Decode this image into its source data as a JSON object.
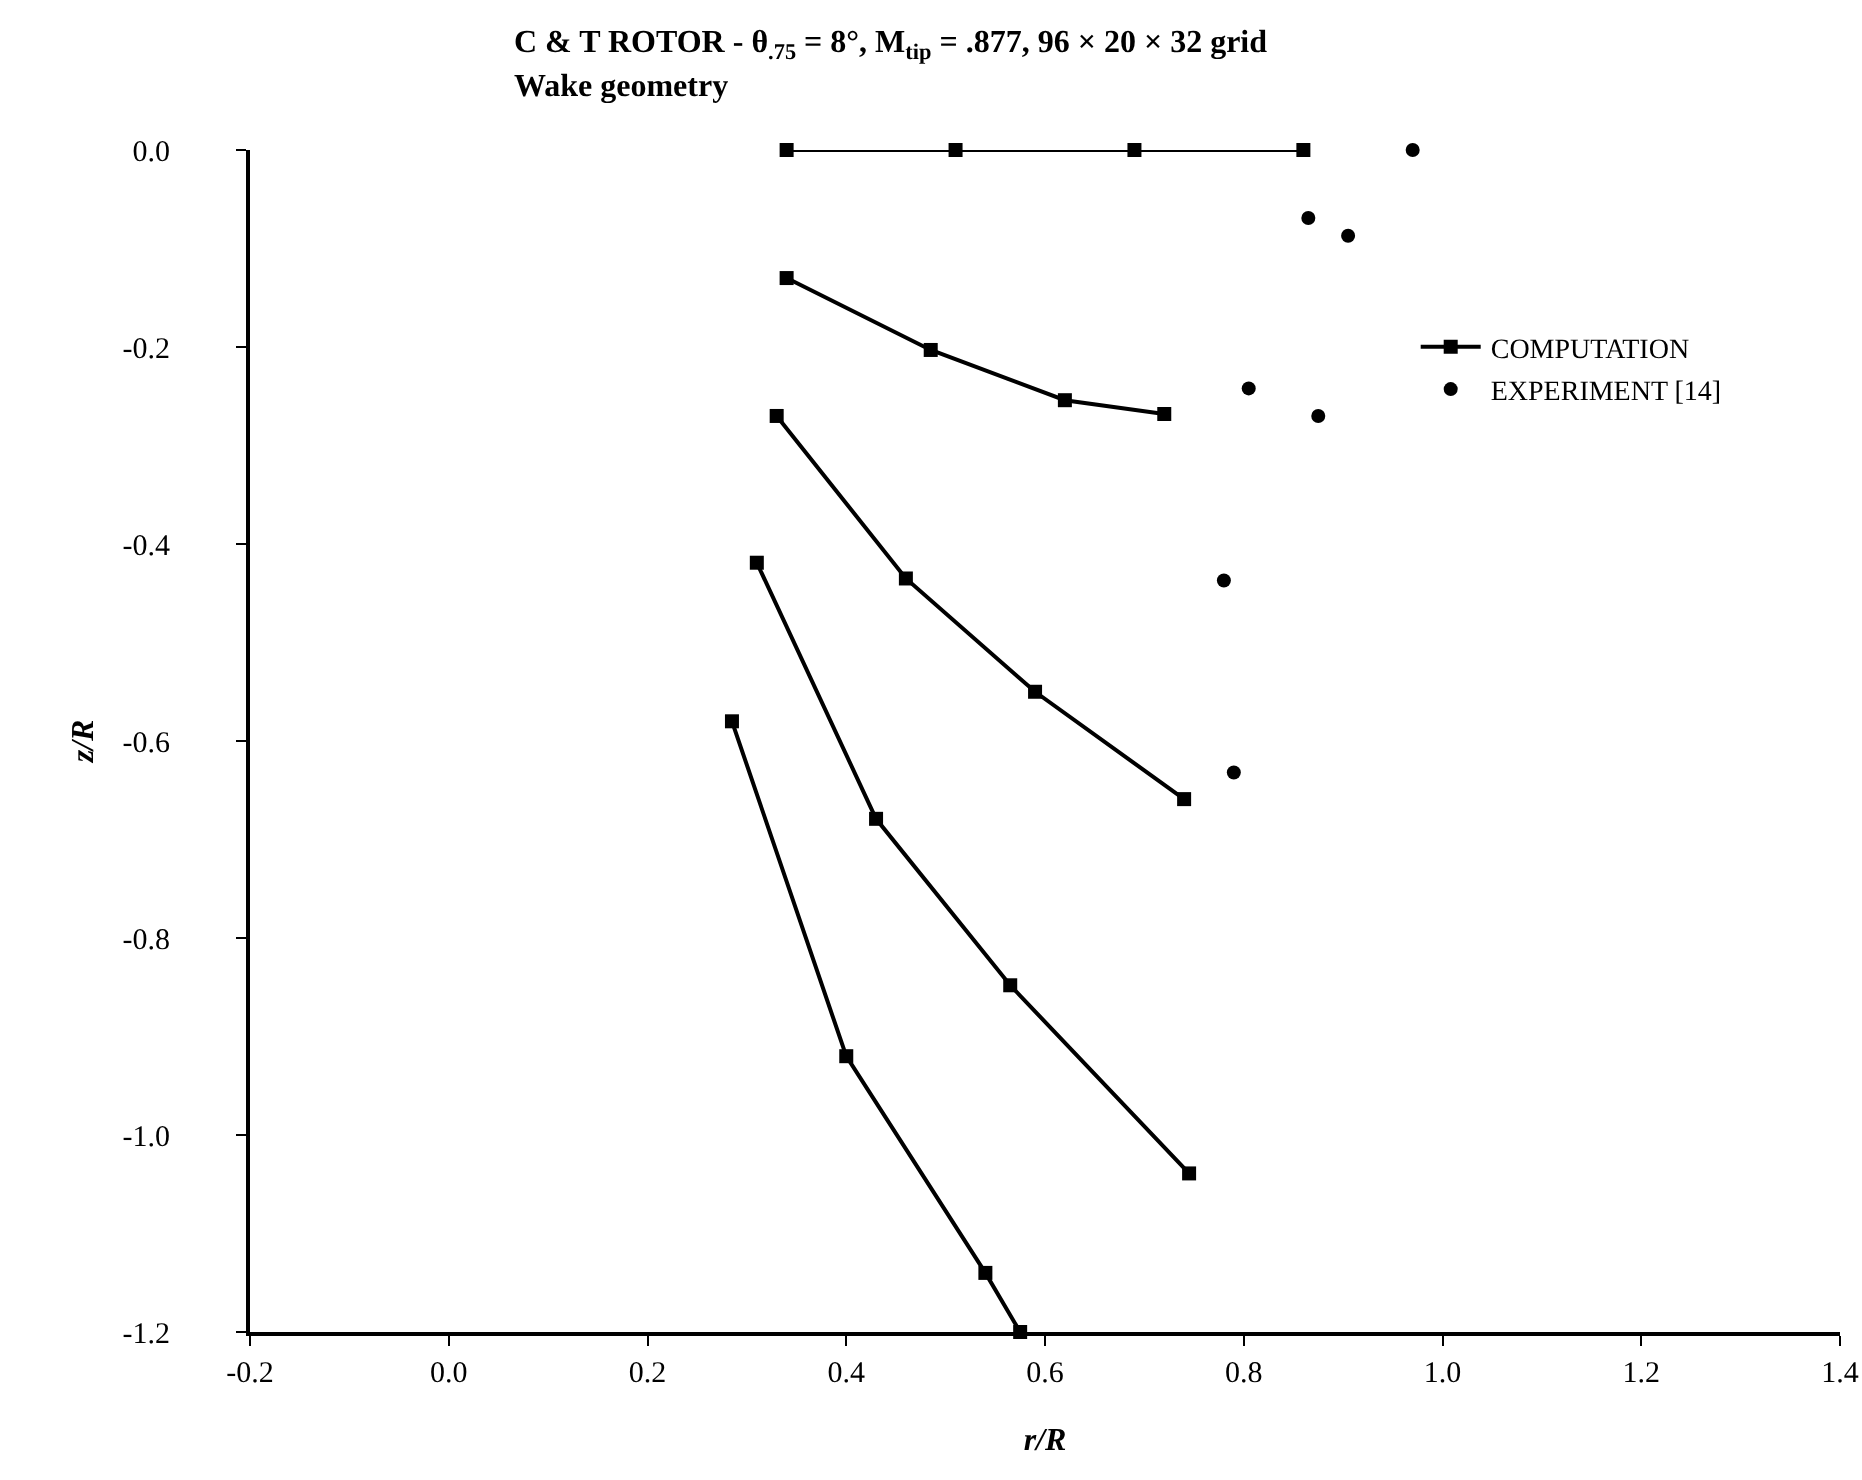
{
  "chart_data": {
    "type": "line",
    "title": "C & T ROTOR - θ$_{.75}$ = 8°, M$_{tip}$ = .877, 96 × 20 × 32 grid",
    "subtitle": "Wake geometry",
    "xlabel": "r/R",
    "ylabel": "z/R",
    "xlim": [
      -0.2,
      1.4
    ],
    "xticks": [
      {
        "value": -0.2,
        "label": "-0.2"
      },
      {
        "value": 0,
        "label": "0.0"
      },
      {
        "value": 0.2,
        "label": "0.2"
      },
      {
        "value": 0.4,
        "label": "0.4"
      },
      {
        "value": 0.6,
        "label": "0.6"
      },
      {
        "value": 0.8,
        "label": "0.8"
      },
      {
        "value": 1,
        "label": "1.0"
      },
      {
        "value": 1.2,
        "label": "1.2"
      },
      {
        "value": 1.4,
        "label": "1.4"
      }
    ],
    "ylim": [
      -1.2,
      0
    ],
    "yticks": [
      {
        "value": -1.2,
        "label": "-1.2"
      },
      {
        "value": -1,
        "label": "-1.0"
      },
      {
        "value": -0.8,
        "label": "-0.8"
      },
      {
        "value": -0.6,
        "label": "-0.6"
      },
      {
        "value": -0.4,
        "label": "-0.4"
      },
      {
        "value": -0.2,
        "label": "-0.2"
      },
      {
        "value": 0,
        "label": "0.0"
      }
    ],
    "grid": false,
    "legend": "top right",
    "line_style": "solid",
    "series": [
      {
        "name": "COMPUTATION",
        "marker": "square",
        "color": "#000000",
        "x": [
          0.34,
          0.51,
          0.69,
          0.86
        ],
        "values": [
          0,
          0,
          0,
          0
        ]
      },
      {
        "marker": "square",
        "color": "#000000",
        "x": [
          0.34,
          0.485,
          0.62,
          0.72
        ],
        "values": [
          -0.13,
          -0.203,
          -0.254,
          -0.268
        ]
      },
      {
        "marker": "square",
        "color": "#000000",
        "x": [
          0.33,
          0.46,
          0.59,
          0.74
        ],
        "values": [
          -0.27,
          -0.435,
          -0.55,
          -0.659
        ]
      },
      {
        "marker": "square",
        "color": "#000000",
        "x": [
          0.31,
          0.43,
          0.565,
          0.745
        ],
        "values": [
          -0.419,
          -0.679,
          -0.848,
          -1.039
        ]
      },
      {
        "marker": "square",
        "color": "#000000",
        "x": [
          0.285,
          0.4,
          0.54,
          0.575
        ],
        "values": [
          -0.58,
          -0.92,
          -1.14,
          -1.2
        ]
      },
      {
        "name": "EXPERIMENT [14]",
        "type": "scatter",
        "marker": "circle",
        "color": "#000000",
        "x": [
          0.97,
          0.865,
          0.905,
          0.805,
          0.875,
          0.78,
          0.79
        ],
        "values": [
          0,
          -0.069,
          -0.087,
          -0.242,
          -0.27,
          -0.437,
          -0.632
        ]
      }
    ]
  }
}
